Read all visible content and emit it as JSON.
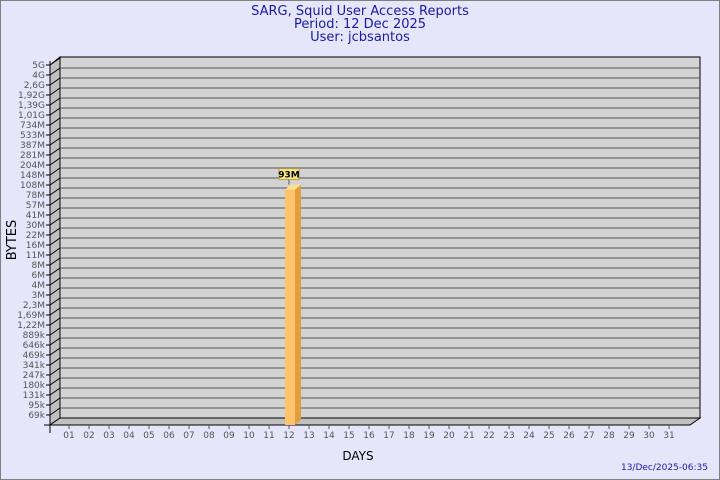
{
  "chart_data": {
    "type": "bar",
    "title": "SARG, Squid User Access Reports",
    "subtitle": [
      "Period: 12 Dec 2025",
      "User: jcbsantos"
    ],
    "xlabel": "DAYS",
    "ylabel": "BYTES",
    "footer": "13/Dec/2025-06:35",
    "ytick_labels": [
      "5G",
      "4G",
      "2,6G",
      "1,92G",
      "1,39G",
      "1,01G",
      "734M",
      "533M",
      "387M",
      "281M",
      "204M",
      "148M",
      "108M",
      "78M",
      "57M",
      "41M",
      "30M",
      "22M",
      "16M",
      "11M",
      "8M",
      "6M",
      "4M",
      "3M",
      "2,3M",
      "1,69M",
      "1,22M",
      "889k",
      "646k",
      "469k",
      "341k",
      "247k",
      "180k",
      "131k",
      "95k",
      "69k"
    ],
    "categories": [
      "01",
      "02",
      "03",
      "04",
      "05",
      "06",
      "07",
      "08",
      "09",
      "10",
      "11",
      "12",
      "13",
      "14",
      "15",
      "16",
      "17",
      "18",
      "19",
      "20",
      "21",
      "22",
      "23",
      "24",
      "25",
      "26",
      "27",
      "28",
      "29",
      "30",
      "31"
    ],
    "bars": [
      {
        "category": "12",
        "value_label": "93M",
        "value_bytes": 93000000
      }
    ],
    "grid": true,
    "colors": {
      "background": "#e6e6fa",
      "plot": "#d3d3d3",
      "bar": "#ffc46b",
      "bar_side": "#e0a040",
      "text": "#1a1aa6",
      "label_box": "#f5e68c"
    }
  }
}
